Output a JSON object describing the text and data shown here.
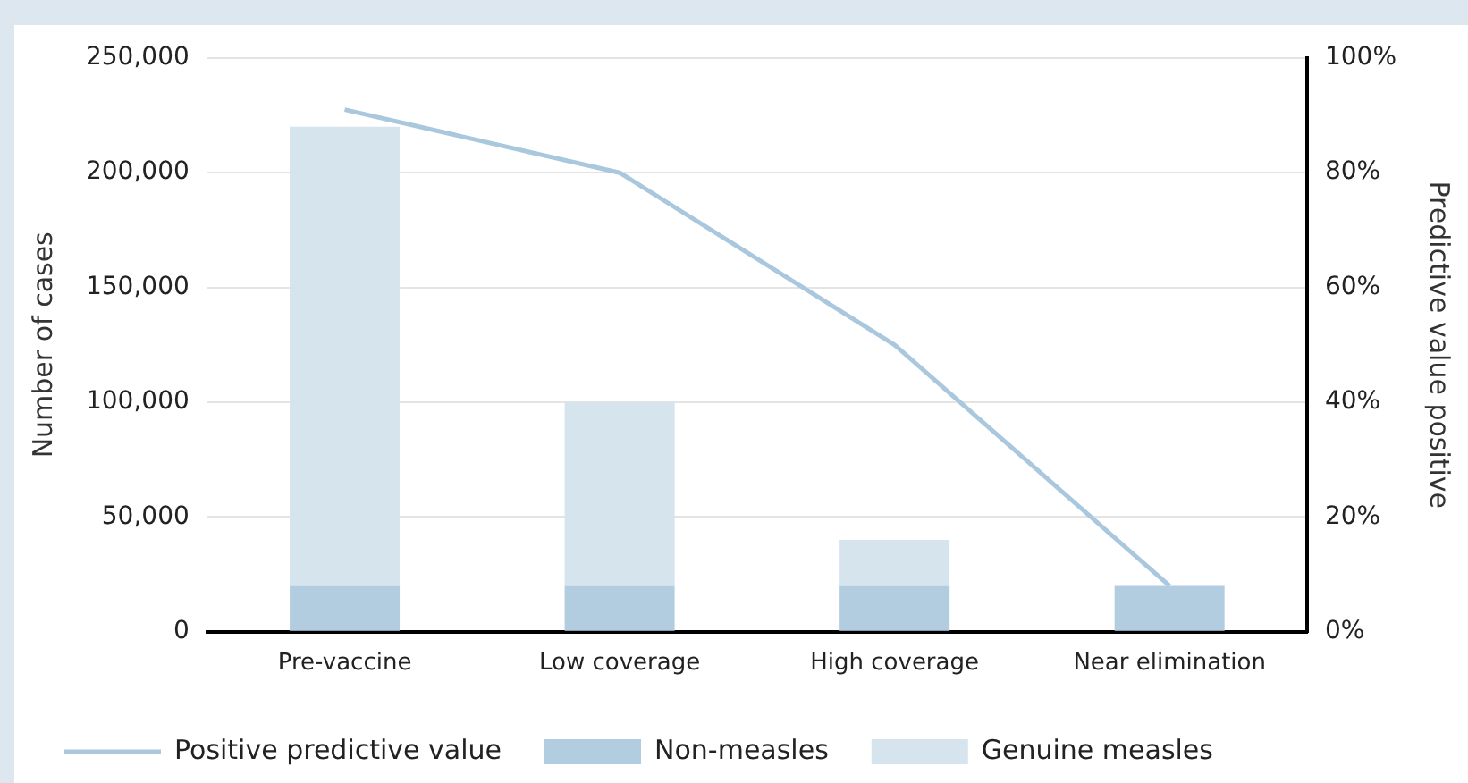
{
  "chart_data": {
    "type": "bar",
    "stacked": true,
    "categories": [
      "Pre-vaccine",
      "Low coverage",
      "High coverage",
      "Near elimination"
    ],
    "ylabel": "Number of cases",
    "y2label": "Predictive value positive",
    "ylim": [
      0,
      250000
    ],
    "yticks": [
      {
        "value": 0,
        "label": "0"
      },
      {
        "value": 50000,
        "label": "50,000"
      },
      {
        "value": 100000,
        "label": "100,000"
      },
      {
        "value": 150000,
        "label": "150,000"
      },
      {
        "value": 200000,
        "label": "200,000"
      },
      {
        "value": 250000,
        "label": "250,000"
      }
    ],
    "y2lim": [
      0,
      100
    ],
    "y2ticks": [
      {
        "value": 0,
        "label": "0%"
      },
      {
        "value": 20,
        "label": "20%"
      },
      {
        "value": 40,
        "label": "40%"
      },
      {
        "value": 60,
        "label": "60%"
      },
      {
        "value": 80,
        "label": "80%"
      },
      {
        "value": 100,
        "label": "100%"
      }
    ],
    "grid": "y",
    "legend": "bottom",
    "marker": "none",
    "series": [
      {
        "name": "Non-measles",
        "color": "#b3cde0",
        "values": [
          20000,
          20000,
          20000,
          20000
        ]
      },
      {
        "name": "Genuine measles",
        "color": "#d6e4ee",
        "values": [
          200000,
          80000,
          20000,
          0
        ]
      },
      {
        "name": "Positive predictive value",
        "type": "line",
        "axis": "y2",
        "color": "#a9c8de",
        "values": [
          91,
          80,
          50,
          8
        ]
      }
    ]
  }
}
